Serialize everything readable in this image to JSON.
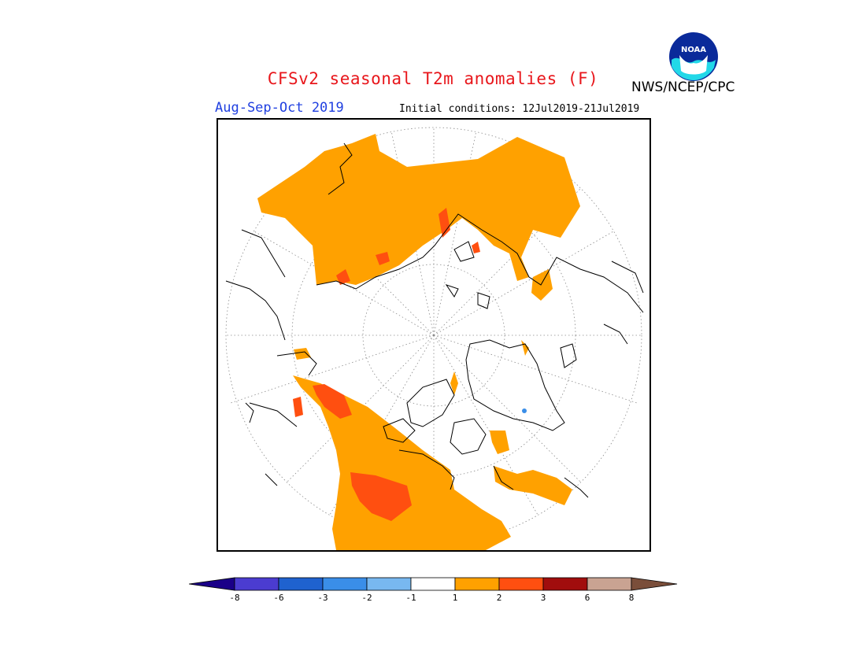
{
  "header": {
    "title": "CFSv2 seasonal T2m anomalies (F)",
    "title_color": "#e8161b",
    "period": "Aug-Sep-Oct 2019",
    "period_color": "#1f3fe0",
    "initial_conditions": "Initial conditions: 12Jul2019-21Jul2019",
    "agency": "NWS/NCEP/CPC"
  },
  "logo": {
    "icon": "noaa-logo-icon",
    "text": "NOAA"
  },
  "colorbar": {
    "ticks": [
      "-8",
      "-6",
      "-3",
      "-2",
      "-1",
      "1",
      "2",
      "3",
      "6",
      "8"
    ],
    "colors": [
      "#1a0088",
      "#4b3cd0",
      "#1f62cf",
      "#3a8ee8",
      "#78b8f0",
      "#ffffff",
      "#ffa100",
      "#ff4f10",
      "#a10d0d",
      "#c9a392",
      "#7a4e3a"
    ]
  },
  "legend_colors": {
    "warm_1_2": "#ffa100",
    "warm_2_3": "#ff4f10",
    "cool": "#3a8ee8"
  }
}
